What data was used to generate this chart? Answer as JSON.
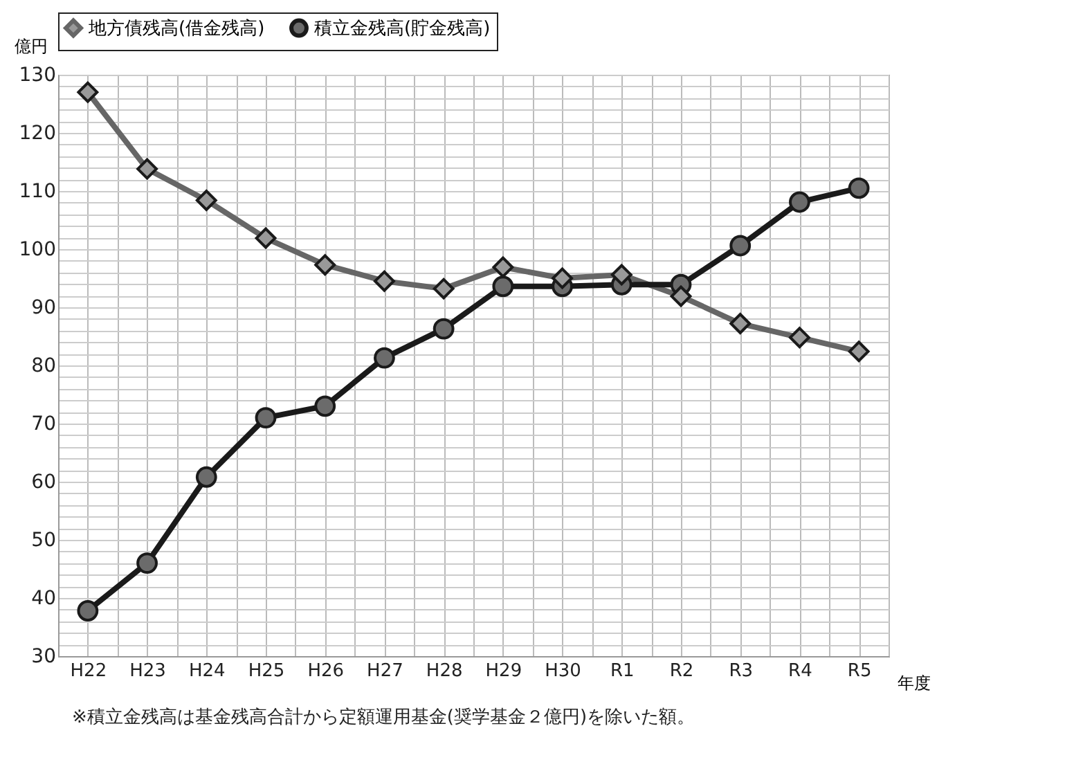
{
  "chart_data": {
    "type": "line",
    "categories": [
      "H22",
      "H23",
      "H24",
      "H25",
      "H26",
      "H27",
      "H28",
      "H29",
      "H30",
      "R1",
      "R2",
      "R3",
      "R4",
      "R5"
    ],
    "series": [
      {
        "name": "地方債残高(借金残高)",
        "color": "#666666",
        "marker": "diamond",
        "values": [
          127,
          113.8,
          108.4,
          101.9,
          97.3,
          94.5,
          93.2,
          96.9,
          95,
          95.6,
          91.9,
          87.2,
          84.8,
          82.4
        ]
      },
      {
        "name": "積立金残高(貯金残高)",
        "color": "#1a1a1a",
        "marker": "circle",
        "values": [
          37.8,
          46,
          60.8,
          71,
          73,
          81.3,
          86.3,
          93.6,
          93.6,
          93.9,
          93.9,
          100.6,
          108.1,
          110.5
        ]
      }
    ],
    "ylabel": "億円",
    "xlabel": "年度",
    "ylim": [
      30,
      130
    ],
    "yticks": [
      30,
      40,
      50,
      60,
      70,
      80,
      90,
      100,
      110,
      120,
      130
    ],
    "grid": true,
    "legend": "top",
    "annotations": [
      "※積立金残高は基金残高合計から定額運用基金(奨学基金２億円)を除いた額。"
    ]
  }
}
